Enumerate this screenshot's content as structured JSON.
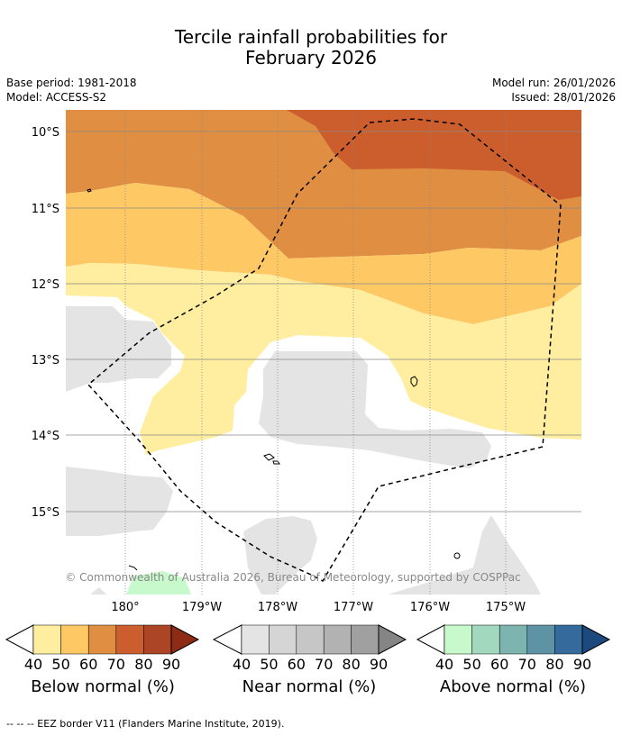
{
  "title_line1": "Tercile rainfall probabilities for",
  "title_line2": "February 2026",
  "base_period": "Base period: 1981-2018",
  "model": "Model: ACCESS-S2",
  "model_run": "Model run: 26/01/2026",
  "issued": "Issued: 28/01/2026",
  "lat_labels": [
    "10°S",
    "11°S",
    "12°S",
    "13°S",
    "14°S",
    "15°S"
  ],
  "lon_labels": [
    "180°",
    "179°W",
    "178°W",
    "177°W",
    "176°W",
    "175°W"
  ],
  "copyright": "© Commonwealth of Australia 2026, Bureau of Meteorology, supported by COSPPac",
  "colorbars": [
    {
      "label": "Below normal (%)",
      "ticks": [
        "40",
        "50",
        "60",
        "70",
        "80",
        "90"
      ],
      "colors": [
        "#ffeda0",
        "#fec965",
        "#e08f42",
        "#cc5e2d",
        "#ac4525"
      ],
      "end_color": "#8e2b16"
    },
    {
      "label": "Near normal (%)",
      "ticks": [
        "40",
        "50",
        "60",
        "70",
        "80",
        "90"
      ],
      "colors": [
        "#e4e4e4",
        "#d5d5d5",
        "#c6c6c6",
        "#b2b2b2",
        "#a0a0a0"
      ],
      "end_color": "#858585"
    },
    {
      "label": "Above normal (%)",
      "ticks": [
        "40",
        "50",
        "60",
        "70",
        "80",
        "90"
      ],
      "colors": [
        "#c7f9cc",
        "#a2d8be",
        "#7eb4b0",
        "#5d93a4",
        "#346a9c"
      ],
      "end_color": "#1d4a7e"
    }
  ],
  "legend_line": "--  --  -- EEZ border V11 (Flanders Marine Institute, 2019)."
}
